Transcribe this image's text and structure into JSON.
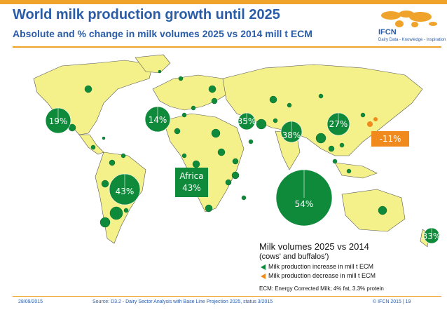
{
  "header": {
    "title": "World milk production growth until 2025",
    "subtitle": "Absolute and % change in milk volumes 2025 vs 2014 mill t ECM"
  },
  "logo": {
    "brand": "IFCN",
    "tagline": "Dairy Data - Knowledge - Inspiration"
  },
  "colors": {
    "accent": "#f0a32b",
    "title_blue": "#2a5ca8",
    "land": "#f4f08a",
    "increase_green": "#0f8a3a",
    "decrease_orange": "#f08a1c"
  },
  "map": {
    "labeled_bubbles": [
      {
        "id": "usa",
        "label": "19%"
      },
      {
        "id": "europe-west",
        "label": "14%"
      },
      {
        "id": "turkey",
        "label": "35%"
      },
      {
        "id": "pakistan",
        "label": "38%"
      },
      {
        "id": "china",
        "label": "27%"
      },
      {
        "id": "brazil",
        "label": "43%"
      },
      {
        "id": "india",
        "label": "54%"
      },
      {
        "id": "new-zealand",
        "label": "33%"
      }
    ],
    "africa_callout": {
      "line1": "Africa",
      "line2": "43%"
    },
    "decline_callout": {
      "label": "-11%"
    }
  },
  "legend": {
    "title": "Milk volumes 2025 vs 2014",
    "subtitle": "(cows' and buffalos')",
    "increase_label": "Milk production increase in mill t ECM",
    "decrease_label": "Milk production decrease in mill t ECM"
  },
  "note": "ECM: Energy Corrected Milk; 4% fat, 3.3% protein",
  "footer": {
    "date": "28/09/2015",
    "source": "Source: D3.2 - Dairy Sector Analysis with Base Line Projection 2025, status 3/2015",
    "copyright": "© IFCN  2015 | 19"
  }
}
